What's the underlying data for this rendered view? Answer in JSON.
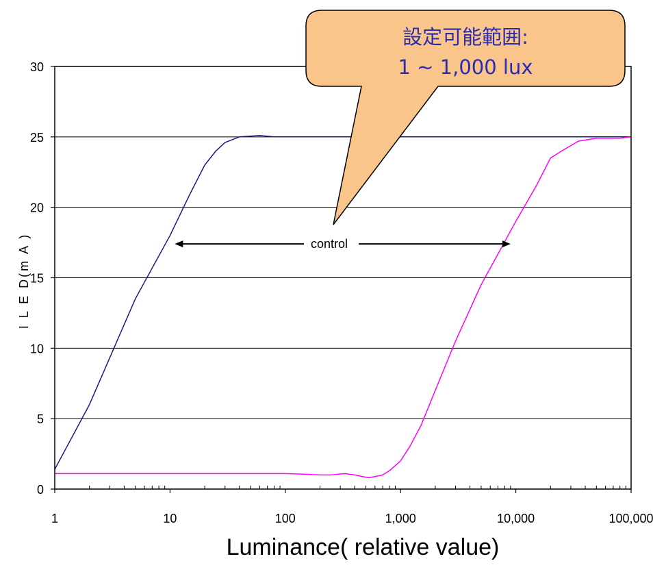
{
  "chart_data": {
    "type": "line",
    "title": "",
    "xlabel": "Luminance( relative value)",
    "ylabel": "I L E D(m A )",
    "x_scale": "log",
    "xlim": [
      1,
      100000
    ],
    "ylim": [
      0,
      30
    ],
    "x_tick_labels": [
      "1",
      "10",
      "100",
      "1,000",
      "10,000",
      "100,000"
    ],
    "x_tick_values": [
      1,
      10,
      100,
      1000,
      10000,
      100000
    ],
    "y_tick_labels": [
      "0",
      "5",
      "10",
      "15",
      "20",
      "25",
      "30"
    ],
    "y_tick_values": [
      0,
      5,
      10,
      15,
      20,
      25,
      30
    ],
    "grid": "horizontal",
    "series": [
      {
        "color": "#1a1a80",
        "x": [
          1,
          2,
          5,
          10,
          15,
          20,
          25,
          30,
          40,
          50,
          60,
          80,
          100,
          1000,
          10000,
          100000
        ],
        "y": [
          1.4,
          6,
          13.5,
          18,
          21,
          23,
          24,
          24.6,
          25,
          25.05,
          25.1,
          25,
          25,
          25,
          25,
          25
        ]
      },
      {
        "color": "#ff00ff",
        "x": [
          1,
          10,
          100,
          150,
          200,
          250,
          330,
          400,
          530,
          700,
          800,
          1000,
          1200,
          1500,
          2000,
          3000,
          5000,
          10000,
          15000,
          20000,
          25000,
          35000,
          50000,
          80000,
          100000
        ],
        "y": [
          1.1,
          1.1,
          1.1,
          1.05,
          1.0,
          1.0,
          1.1,
          1.0,
          0.8,
          1.0,
          1.3,
          2.0,
          3.0,
          4.5,
          7.0,
          10.5,
          14.5,
          19.0,
          21.5,
          23.5,
          24.0,
          24.7,
          24.9,
          24.9,
          25.0
        ]
      }
    ],
    "annotation": {
      "text": "control",
      "arrow_from": 11,
      "arrow_to": 9000,
      "y": 17.4,
      "arrow_color": "#000000"
    },
    "callout": {
      "lines": [
        "設定可能範囲:",
        "1 ~ 1,000 lux"
      ],
      "fill": "#f9c58a",
      "text_color": "#2b2bb0"
    }
  }
}
